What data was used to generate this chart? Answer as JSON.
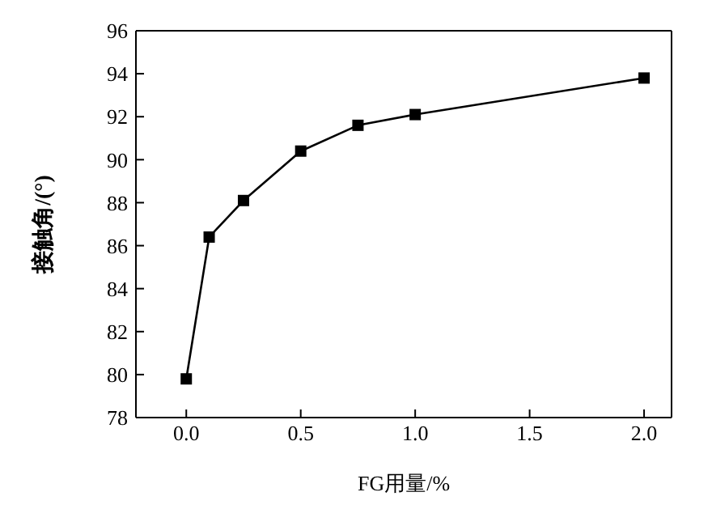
{
  "chart_data": {
    "type": "line",
    "xlabel": "FG用量/%",
    "ylabel": "接触角/(°)",
    "x": [
      0,
      0.1,
      0.25,
      0.5,
      0.75,
      1.0,
      2.0
    ],
    "series": [
      {
        "color": "#000000",
        "values": [
          79.8,
          86.4,
          88.1,
          90.4,
          91.6,
          92.1,
          93.8
        ]
      }
    ],
    "xlim": [
      -0.22,
      2.12
    ],
    "xticks": [
      {
        "value": 0,
        "label": "0.0"
      },
      {
        "value": 0.5,
        "label": "0.5"
      },
      {
        "value": 1,
        "label": "1.0"
      },
      {
        "value": 1.5,
        "label": "1.5"
      },
      {
        "value": 2,
        "label": "2.0"
      }
    ],
    "ylim": [
      78,
      96
    ],
    "yticks": [
      78,
      80,
      82,
      84,
      86,
      88,
      90,
      92,
      94,
      96
    ],
    "marker": "square",
    "line_style": "solid",
    "grid": false,
    "legend": false
  }
}
